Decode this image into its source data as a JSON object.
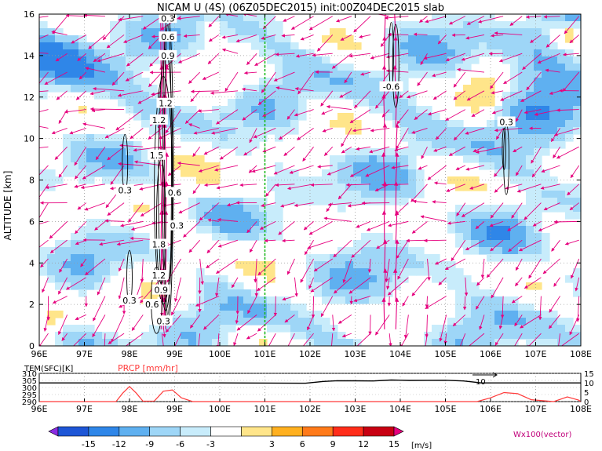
{
  "chart_data": [
    {
      "type": "contour-vector",
      "title": "NICAM U (4S) (06Z05DEC2015) init:00Z04DEC2015 slab",
      "ylabel": "ALTITUDE [km]",
      "xlim": [
        96,
        108
      ],
      "ylim": [
        0,
        16
      ],
      "x_ticks": [
        "96E",
        "97E",
        "98E",
        "99E",
        "100E",
        "101E",
        "102E",
        "103E",
        "104E",
        "105E",
        "106E",
        "107E",
        "108E"
      ],
      "y_ticks": [
        "0",
        "2",
        "4",
        "6",
        "8",
        "10",
        "12",
        "14",
        "16"
      ],
      "grid": true,
      "reference_line_x": 101,
      "contour_labels": [
        {
          "text": "0.3",
          "x": 98.85,
          "y": 15.8
        },
        {
          "text": "0.6",
          "x": 98.85,
          "y": 14.9
        },
        {
          "text": "0.9",
          "x": 98.85,
          "y": 14.0
        },
        {
          "text": "1.2",
          "x": 98.8,
          "y": 11.7
        },
        {
          "text": "1.2",
          "x": 98.65,
          "y": 10.9
        },
        {
          "text": "1.5",
          "x": 98.6,
          "y": 9.2
        },
        {
          "text": "0.3",
          "x": 97.9,
          "y": 7.5
        },
        {
          "text": "0.6",
          "x": 99.0,
          "y": 7.4
        },
        {
          "text": "0.3",
          "x": 99.05,
          "y": 5.8
        },
        {
          "text": "1.8",
          "x": 98.65,
          "y": 4.9
        },
        {
          "text": "1.2",
          "x": 98.65,
          "y": 3.4
        },
        {
          "text": "0.9",
          "x": 98.7,
          "y": 2.7
        },
        {
          "text": "0.3",
          "x": 98.0,
          "y": 2.2
        },
        {
          "text": "0.6",
          "x": 98.5,
          "y": 2.0
        },
        {
          "text": "0.3",
          "x": 98.75,
          "y": 1.2
        },
        {
          "text": "-0.6",
          "x": 103.8,
          "y": 12.5
        },
        {
          "text": "0.3",
          "x": 106.35,
          "y": 10.8
        }
      ],
      "arrow_color": "#e6007e"
    },
    {
      "type": "line",
      "xlim": [
        96,
        108
      ],
      "x_ticks": [
        "96E",
        "97E",
        "98E",
        "99E",
        "100E",
        "101E",
        "102E",
        "103E",
        "104E",
        "105E",
        "106E",
        "107E",
        "108E"
      ],
      "left_axis": {
        "label": "TEM(SFC)[K]",
        "ticks": [
          "290",
          "295",
          "300",
          "305",
          "310"
        ],
        "range": [
          290,
          310
        ]
      },
      "right_axis": {
        "label": "PRCP [mm/hr]",
        "ticks": [
          "0",
          "5",
          "10",
          "15"
        ],
        "range": [
          0,
          15
        ]
      },
      "series": [
        {
          "name": "TEM(SFC)[K]",
          "color": "#000000",
          "x": [
            96,
            100,
            101.9,
            102.3,
            102.6,
            103.0,
            103.4,
            103.8,
            104.2,
            105.0,
            105.4,
            105.8,
            106.2,
            108
          ],
          "y": [
            303.2,
            303.2,
            303.0,
            304.3,
            304.8,
            304.7,
            304.6,
            305.3,
            305.0,
            305.1,
            304.6,
            303.2,
            303.2,
            303.2
          ]
        },
        {
          "name": "PRCP [mm/hr]",
          "color": "#ff3b3b",
          "x": [
            96,
            97.7,
            97.85,
            98.0,
            98.15,
            98.3,
            98.55,
            98.75,
            98.95,
            99.15,
            99.4,
            105.7,
            106.0,
            106.3,
            106.6,
            106.9,
            107.4,
            107.7,
            107.95,
            108
          ],
          "y": [
            0.0,
            0.0,
            4.5,
            8.0,
            4.5,
            0.2,
            0.3,
            5.5,
            6.2,
            2.0,
            0.0,
            0.0,
            2.0,
            4.8,
            4.2,
            1.0,
            0.0,
            2.5,
            0.8,
            0.0
          ]
        }
      ]
    }
  ],
  "colorbar": {
    "ticks": [
      "-15",
      "-12",
      "-9",
      "-6",
      "-3",
      "3",
      "6",
      "9",
      "12",
      "15"
    ],
    "units": "[m/s]",
    "colors": [
      "#8a2be2",
      "#1e56d6",
      "#2f86e8",
      "#5fb0f0",
      "#9ed6f7",
      "#c8ecfb",
      "#ffffff",
      "#ffe58a",
      "#ffb01f",
      "#ff7a1a",
      "#ff2d1a",
      "#c80012",
      "#e6007e"
    ]
  },
  "vector_label": "Wx100(vector)",
  "panel_labels": {
    "tem": "TEM(SFC)[K]",
    "prcp": "PRCP [mm/hr]",
    "marker": "10"
  }
}
